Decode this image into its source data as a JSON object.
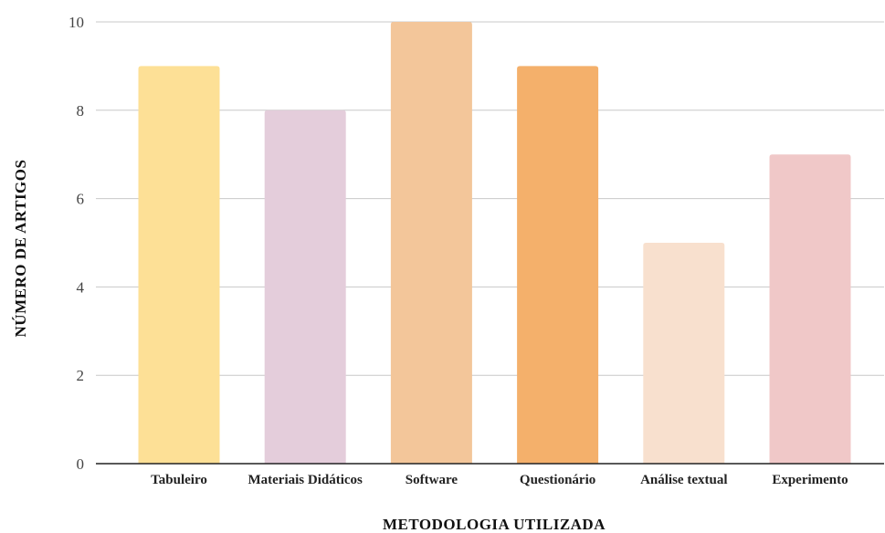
{
  "chart_data": {
    "type": "bar",
    "title": "",
    "xlabel": "METODOLOGIA UTILIZADA",
    "ylabel": "NÚMERO DE ARTIGOS",
    "categories": [
      "Tabuleiro",
      "Materiais Didáticos",
      "Software",
      "Questionário",
      "Análise textual",
      "Experimento"
    ],
    "values": [
      9,
      8,
      10,
      9,
      5,
      7
    ],
    "colors": [
      "#fde096",
      "#e4cddb",
      "#f3c69a",
      "#f4b06b",
      "#f8e0ce",
      "#f0c8c8"
    ],
    "ylim": [
      0,
      10
    ],
    "yticks": [
      0,
      2,
      4,
      6,
      8,
      10
    ],
    "grid": true,
    "legend": "none"
  }
}
